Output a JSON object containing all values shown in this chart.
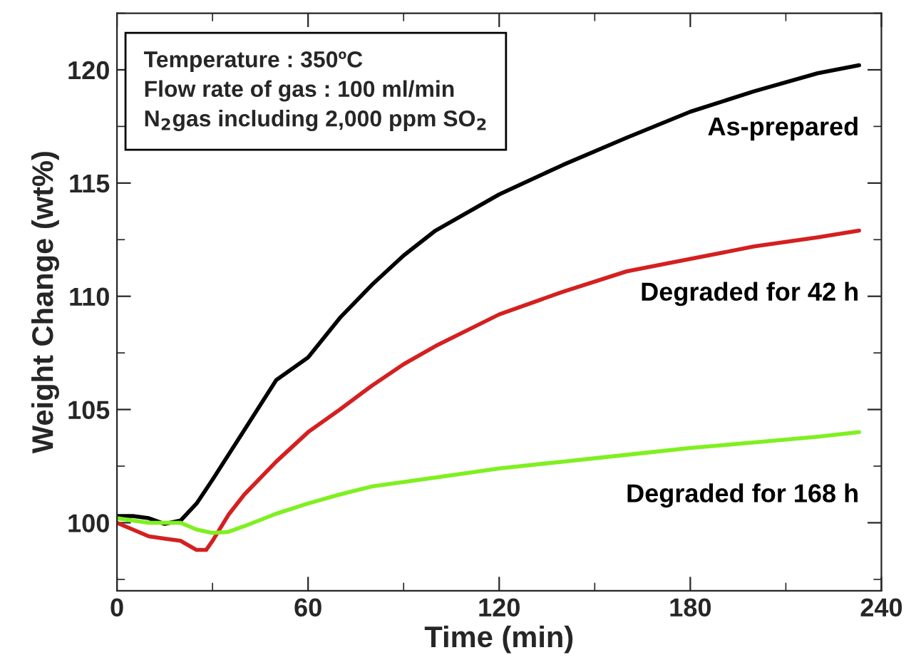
{
  "chart_data": {
    "type": "line",
    "xlabel": "Time (min)",
    "ylabel": "Weight Change (wt%)",
    "xlim": [
      0,
      240
    ],
    "xticks": [
      0,
      60,
      120,
      180,
      240
    ],
    "ylim": [
      97,
      122.5
    ],
    "yticks": [
      100,
      105,
      110,
      115,
      120
    ],
    "grid": false,
    "legend": false,
    "marker": "none",
    "line_style": "solid",
    "annotations": [
      "Temperature : 350ºC",
      "Flow rate of gas : 100 ml/min",
      "N$_{2}$gas including 2,000 ppm SO$_{2}$"
    ],
    "series": [
      {
        "name": "As-prepared",
        "color": "#000000",
        "x": [
          0,
          5,
          10,
          15,
          20,
          25,
          30,
          40,
          50,
          60,
          70,
          80,
          90,
          100,
          120,
          140,
          160,
          180,
          200,
          220,
          233
        ],
        "values": [
          100.3,
          100.3,
          100.2,
          99.95,
          100.1,
          100.85,
          101.9,
          104.1,
          106.3,
          107.3,
          109.05,
          110.5,
          111.8,
          112.9,
          114.5,
          115.8,
          117.0,
          118.15,
          119.05,
          119.85,
          120.2
        ]
      },
      {
        "name": "Degraded for 42 h",
        "color": "#d42020",
        "x": [
          0,
          5,
          10,
          15,
          20,
          25,
          28,
          30,
          35,
          40,
          50,
          60,
          70,
          80,
          90,
          100,
          120,
          140,
          160,
          180,
          200,
          220,
          233
        ],
        "values": [
          100.0,
          99.7,
          99.4,
          99.3,
          99.2,
          98.8,
          98.8,
          99.2,
          100.35,
          101.25,
          102.7,
          104.0,
          105.0,
          106.05,
          107.0,
          107.8,
          109.2,
          110.2,
          111.1,
          111.65,
          112.2,
          112.6,
          112.9
        ]
      },
      {
        "name": "Degraded for 168 h",
        "color": "#7ff020",
        "x": [
          0,
          5,
          10,
          15,
          20,
          25,
          30,
          35,
          40,
          50,
          60,
          70,
          80,
          100,
          120,
          140,
          160,
          180,
          200,
          220,
          233
        ],
        "values": [
          100.2,
          100.1,
          100.0,
          100.0,
          100.0,
          99.7,
          99.55,
          99.6,
          99.85,
          100.4,
          100.85,
          101.25,
          101.6,
          102.0,
          102.4,
          102.7,
          103.0,
          103.3,
          103.55,
          103.8,
          104.0
        ]
      }
    ]
  }
}
